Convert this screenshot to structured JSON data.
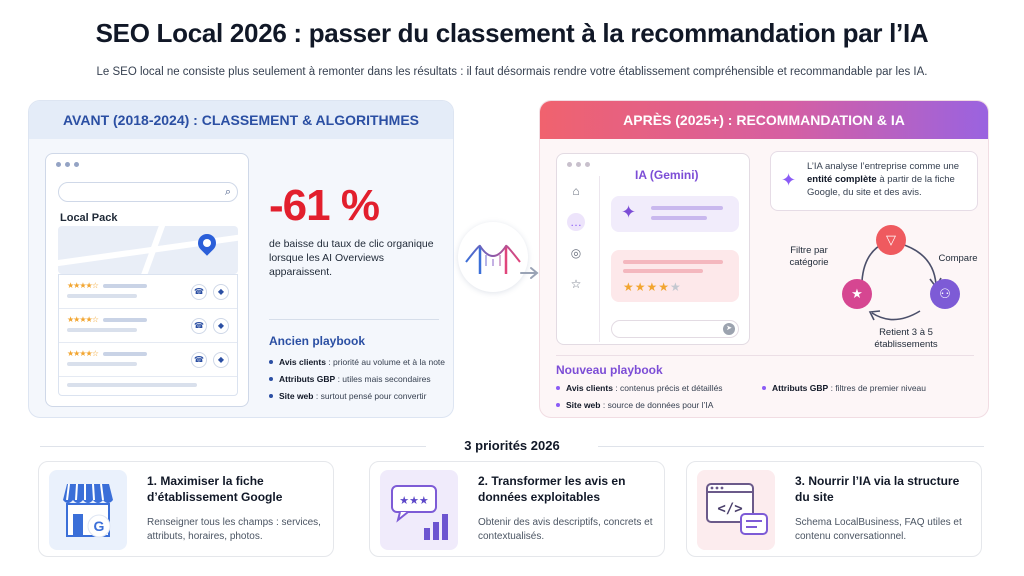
{
  "header": {
    "title": "SEO Local 2026 : passer du classement à la recommandation par l’IA",
    "subtitle": "Le SEO local ne consiste plus seulement à remonter dans les résultats : il faut désormais rendre votre établissement compréhensible et recommandable par les IA."
  },
  "before": {
    "heading": "AVANT (2018-2024) : CLASSEMENT & ALGORITHMES",
    "local_pack_label": "Local Pack",
    "stat": "-61 %",
    "stat_desc": "de baisse du taux de clic organique lorsque les AI Overviews apparaissent.",
    "playbook_title": "Ancien playbook",
    "playbook": [
      {
        "label": "Avis clients",
        "text": " : priorité au volume et à la note"
      },
      {
        "label": "Attributs GBP",
        "text": " : utiles mais secondaires"
      },
      {
        "label": "Site web",
        "text": " : surtout pensé pour convertir"
      }
    ]
  },
  "after": {
    "heading": "APRÈS (2025+) : RECOMMANDATION & IA",
    "ia_label": "IA (Gemini)",
    "ia_card": {
      "pre": "L’IA analyse l’entreprise comme une ",
      "strong": "entité complète",
      "post": " à partir de la fiche Google, du site et des avis."
    },
    "cycle": {
      "filter": "Filtre par catégorie",
      "compare": "Compare",
      "retain": "Retient 3 à 5 établissements"
    },
    "playbook_title": "Nouveau playbook",
    "playbook_col1": [
      {
        "label": "Avis clients",
        "text": " : contenus précis et détaillés"
      },
      {
        "label": "Site web",
        "text": " : source de données pour l’IA"
      }
    ],
    "playbook_col2": [
      {
        "label": "Attributs GBP",
        "text": " : filtres de premier niveau"
      }
    ]
  },
  "priorities": {
    "title": "3 priorités 2026",
    "items": [
      {
        "title": "1. Maximiser la fiche d’établissement Google",
        "desc": "Renseigner tous les champs : services, attributs, horaires, photos."
      },
      {
        "title": "2. Transformer les avis en données exploitables",
        "desc": "Obtenir des avis descriptifs, concrets et contextualisés."
      },
      {
        "title": "3. Nourrir l’IA via la structure du site",
        "desc": "Schema LocalBusiness, FAQ utiles et contenu conversationnel."
      }
    ]
  },
  "colors": {
    "accent_blue": "#2b4fa3",
    "stat_red": "#e21f2d",
    "accent_purple": "#7c4dd6",
    "gradient_start": "#f0626e",
    "gradient_end": "#9a63e0"
  },
  "icons": [
    "search-icon",
    "map-pin-icon",
    "phone-icon",
    "directions-icon",
    "bridge-icon",
    "arrow-right-icon",
    "home-icon",
    "chat-icon",
    "globe-icon",
    "star-icon",
    "sparkle-icon",
    "send-icon",
    "filter-icon",
    "users-icon",
    "storefront-icon",
    "reviews-chart-icon",
    "code-window-icon"
  ]
}
